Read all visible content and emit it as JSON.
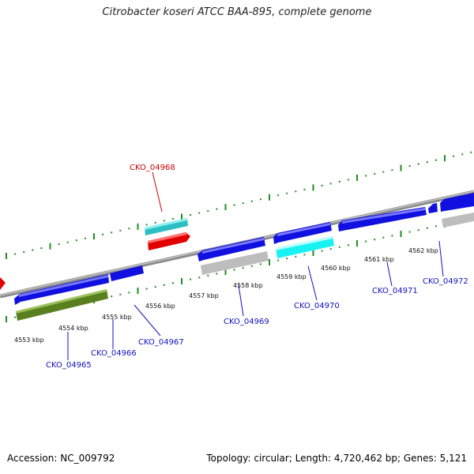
{
  "title": "Citrobacter koseri ATCC BAA-895, complete genome",
  "accession": "Accession: NC_009792",
  "summary": "Topology: circular; Length: 4,720,462 bp; Genes: 5,121",
  "colors": {
    "backbone": "#888888",
    "ticks": "#228b22",
    "cds_forward": "#1010e8",
    "cds_reverse": "#1010e8",
    "highlight_red": "#e00000",
    "cyan": "#2ecfd0",
    "cyan_bright": "#19f2f2",
    "grey": "#bdbdbd",
    "olive": "#5a7f1e",
    "label_blue": "#1010c0",
    "label_red": "#d00000"
  },
  "kbp_labels": [
    "4553 kbp",
    "4554 kbp",
    "4555 kbp",
    "4556 kbp",
    "4557 kbp",
    "4558 kbp",
    "4559 kbp",
    "4560 kbp",
    "4561 kbp",
    "4562 kbp"
  ],
  "gene_labels": [
    "CKO_04965",
    "CKO_04966",
    "CKO_04967",
    "CKO_04968",
    "CKO_04969",
    "CKO_04970",
    "CKO_04971",
    "CKO_04972"
  ]
}
